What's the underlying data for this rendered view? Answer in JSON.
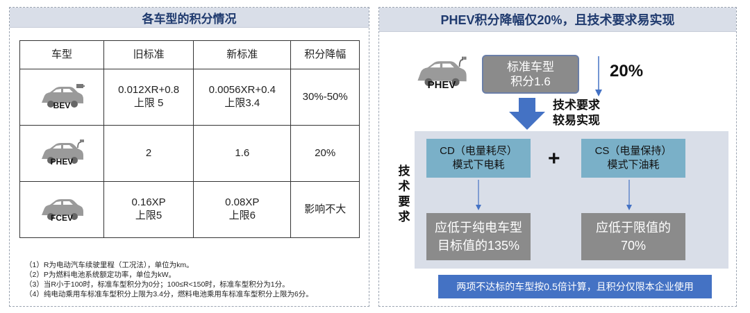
{
  "left_panel": {
    "title": "各车型的积分情况",
    "table": {
      "headers": [
        "车型",
        "旧标准",
        "新标准",
        "积分降幅"
      ],
      "rows": [
        {
          "vehicle": "BEV",
          "old": [
            "0.012XR+0.8",
            "上限 5"
          ],
          "new": [
            "0.0056XR+0.4",
            "上限3.4"
          ],
          "drop": "30%-50%"
        },
        {
          "vehicle": "PHEV",
          "old": [
            "2"
          ],
          "new": [
            "1.6"
          ],
          "drop": "20%"
        },
        {
          "vehicle": "FCEV",
          "old": [
            "0.16XP",
            "上限5"
          ],
          "new": [
            "0.08XP",
            "上限6"
          ],
          "drop": "影响不大"
        }
      ]
    },
    "notes": [
      "（1）R为电动汽车续驶里程（工况法），单位为km。",
      "（2）P为燃料电池系统额定功率，单位为kW。",
      "（3）当R小于100时，标准车型积分为0分；100≤R<150时，标准车型积分为1分。",
      "（4）纯电动乘用车标准车型积分上限为3.4分，燃料电池乘用车标准车型积分上限为6分。"
    ]
  },
  "right_panel": {
    "title": "PHEV积分降幅仅20%，且技术要求易实现",
    "vehicle_label": "PHEV",
    "standard_box": [
      "标准车型",
      "积分1.6"
    ],
    "percent": "20%",
    "easy_note": [
      "技术要求",
      "较易实现"
    ],
    "side_label": [
      "技",
      "术",
      "要",
      "求"
    ],
    "cd_box": [
      "CD（电量耗尽）",
      "模式下电耗"
    ],
    "cs_box": [
      "CS（电量保持）",
      "模式下油耗"
    ],
    "plus": "+",
    "cd_target": [
      "应低于纯电车型",
      "目标值的135%"
    ],
    "cs_target": [
      "应低于限值的",
      "70%"
    ],
    "bottom_note": "两项不达标的车型按0.5倍计算，且积分仅限本企业使用"
  },
  "colors": {
    "title_bg": "#d9dee8",
    "title_text": "#1f3a6e",
    "box_gray": "#8b8b8b",
    "box_blue": "#7ab0c8",
    "arrow_blue": "#4472c4",
    "bar_blue": "#4472c4"
  }
}
